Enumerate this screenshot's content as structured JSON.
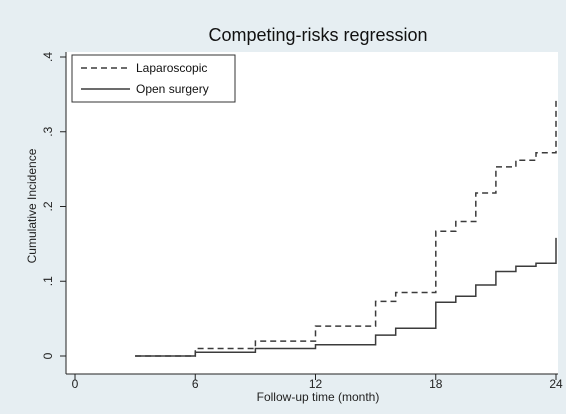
{
  "chart_data": {
    "type": "line",
    "chart_kind": "step",
    "title": "Competing-risks regression",
    "xlabel": "Follow-up time (month)",
    "ylabel": "Cumulative Incidence",
    "xlim": [
      0,
      24
    ],
    "ylim": [
      0,
      0.4
    ],
    "x_ticks": [
      0,
      6,
      12,
      18,
      24
    ],
    "y_ticks": [
      0,
      0.1,
      0.2,
      0.3,
      0.4
    ],
    "x_tick_labels": [
      "0",
      "6",
      "12",
      "18",
      "24"
    ],
    "y_tick_labels": [
      "0",
      ".1",
      ".2",
      ".3",
      ".4"
    ],
    "grid": false,
    "legend_position": "top-left",
    "colors": {
      "background": "#e6eef2",
      "plot_bg": "#ffffff",
      "series": "#3b3b3b"
    },
    "series": [
      {
        "name": "Laparoscopic",
        "style": "dashed",
        "x": [
          3,
          6,
          9,
          12,
          15,
          16,
          18,
          19,
          20,
          21,
          22,
          23,
          24
        ],
        "y": [
          0,
          0.01,
          0.02,
          0.04,
          0.073,
          0.085,
          0.167,
          0.18,
          0.218,
          0.253,
          0.262,
          0.272,
          0.343
        ]
      },
      {
        "name": "Open surgery",
        "style": "solid",
        "x": [
          3,
          6,
          9,
          12,
          15,
          16,
          18,
          19,
          20,
          21,
          22,
          23,
          24
        ],
        "y": [
          0,
          0.005,
          0.01,
          0.015,
          0.028,
          0.037,
          0.072,
          0.08,
          0.095,
          0.113,
          0.12,
          0.124,
          0.158
        ]
      }
    ]
  }
}
